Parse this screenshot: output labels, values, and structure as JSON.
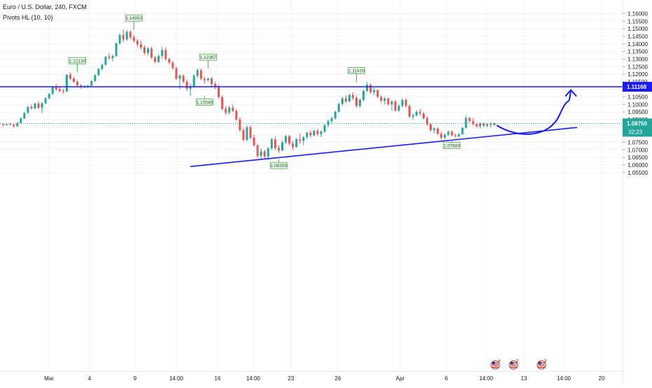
{
  "header": {
    "symbol_line": "Euro / U.S. Dollar, 240, FXCM",
    "indicator_line": "Pivots HL (10, 10)"
  },
  "colors": {
    "up": "#26a69a",
    "down": "#ef5350",
    "level_line": "#1a1aff",
    "last_price_bg": "#26a69a",
    "level_label_bg": "#1a1aff",
    "pivot_label_border": "#4caf50",
    "pivot_label_bg": "#eef7ee",
    "dotted_price_line": "#26a69a",
    "grid": "#f0f3fa",
    "axis_text": "#131722"
  },
  "price_axis": {
    "ticks": [
      "1.05500",
      "1.06000",
      "1.06500",
      "1.07000",
      "1.07500",
      "1.08000",
      "1.08500",
      "1.09000",
      "1.09500",
      "1.10000",
      "1.10500",
      "1.11000",
      "1.11500",
      "1.12000",
      "1.12500",
      "1.13000",
      "1.13500",
      "1.14000",
      "1.14500",
      "1.15000",
      "1.15500",
      "1.16000"
    ],
    "last_price_label": "1.08750",
    "countdown_label": "32:23",
    "level_label": "1.11168"
  },
  "time_axis": {
    "ticks": [
      "Mar",
      "4",
      "9",
      "14:00",
      "16",
      "14:00",
      "23",
      "26",
      "Apr",
      "6",
      "14:00",
      "13",
      "14:00",
      "20"
    ]
  },
  "event_icons": [
    "us-flag-icon",
    "us-flag-icon",
    "us-flag-icon"
  ],
  "event_counts": [
    "4",
    "2",
    "3"
  ],
  "chart_data": {
    "type": "candlestick",
    "title": "Euro / U.S. Dollar, 240, FXCM",
    "timeframe": "240",
    "ylim": [
      1.0525,
      1.1625
    ],
    "last_price": 1.0875,
    "horizontal_level": 1.11168,
    "pivot_labels": [
      {
        "text": "1.12130",
        "price": 1.1213,
        "type": "high"
      },
      {
        "text": "1.14950",
        "price": 1.1495,
        "type": "high"
      },
      {
        "text": "1.12367",
        "price": 1.12367,
        "type": "high"
      },
      {
        "text": "1.10549",
        "price": 1.10549,
        "type": "low"
      },
      {
        "text": "1.06359",
        "price": 1.06359,
        "type": "low"
      },
      {
        "text": "1.11476",
        "price": 1.11476,
        "type": "high"
      },
      {
        "text": "1.07683",
        "price": 1.07683,
        "type": "low"
      }
    ],
    "trendline": {
      "from": {
        "bar": 53,
        "price": 1.059
      },
      "to": {
        "bar": 138,
        "price": 1.0848
      }
    },
    "projection_arrow": {
      "from_price": 1.0862,
      "low_price": 1.084,
      "to_price": 1.1095
    },
    "candles": [
      [
        1.0868,
        1.0874,
        1.0856,
        1.0864
      ],
      [
        1.0864,
        1.0872,
        1.086,
        1.0869
      ],
      [
        1.0869,
        1.0879,
        1.0863,
        1.0866
      ],
      [
        1.0866,
        1.0872,
        1.0848,
        1.0856
      ],
      [
        1.0856,
        1.0882,
        1.0852,
        1.0878
      ],
      [
        1.0878,
        1.0914,
        1.0874,
        1.0908
      ],
      [
        1.0908,
        1.095,
        1.0902,
        1.0944
      ],
      [
        1.0944,
        1.099,
        1.0938,
        1.0984
      ],
      [
        1.0984,
        1.1,
        1.0966,
        1.0974
      ],
      [
        1.0974,
        1.1012,
        1.0968,
        1.1006
      ],
      [
        1.1006,
        1.102,
        1.097,
        1.0978
      ],
      [
        1.0978,
        1.1016,
        1.0944,
        1.1008
      ],
      [
        1.1008,
        1.1048,
        1.1002,
        1.104
      ],
      [
        1.104,
        1.1076,
        1.1034,
        1.107
      ],
      [
        1.107,
        1.112,
        1.1064,
        1.1114
      ],
      [
        1.1114,
        1.1134,
        1.109,
        1.11
      ],
      [
        1.11,
        1.1116,
        1.108,
        1.109
      ],
      [
        1.109,
        1.1104,
        1.1072,
        1.1086
      ],
      [
        1.1086,
        1.12,
        1.1082,
        1.1196
      ],
      [
        1.1196,
        1.1213,
        1.116,
        1.117
      ],
      [
        1.117,
        1.1182,
        1.1142,
        1.115
      ],
      [
        1.115,
        1.116,
        1.1118,
        1.1126
      ],
      [
        1.1126,
        1.1136,
        1.1104,
        1.1116
      ],
      [
        1.1116,
        1.1128,
        1.1108,
        1.112
      ],
      [
        1.112,
        1.113,
        1.111,
        1.1124
      ],
      [
        1.1124,
        1.116,
        1.1118,
        1.1154
      ],
      [
        1.1154,
        1.12,
        1.1148,
        1.1194
      ],
      [
        1.1194,
        1.124,
        1.1188,
        1.1234
      ],
      [
        1.1234,
        1.127,
        1.1226,
        1.1262
      ],
      [
        1.1262,
        1.132,
        1.1256,
        1.1314
      ],
      [
        1.1314,
        1.134,
        1.1296,
        1.1306
      ],
      [
        1.1306,
        1.133,
        1.1284,
        1.132
      ],
      [
        1.132,
        1.141,
        1.1314,
        1.1404
      ],
      [
        1.1404,
        1.147,
        1.1394,
        1.146
      ],
      [
        1.146,
        1.1495,
        1.141,
        1.143
      ],
      [
        1.143,
        1.149,
        1.142,
        1.148
      ],
      [
        1.148,
        1.149,
        1.143,
        1.1444
      ],
      [
        1.1444,
        1.146,
        1.141,
        1.142
      ],
      [
        1.142,
        1.143,
        1.138,
        1.1396
      ],
      [
        1.1396,
        1.142,
        1.136,
        1.1376
      ],
      [
        1.1376,
        1.1392,
        1.133,
        1.134
      ],
      [
        1.134,
        1.1378,
        1.1326,
        1.137
      ],
      [
        1.137,
        1.138,
        1.13,
        1.131
      ],
      [
        1.131,
        1.132,
        1.127,
        1.1282
      ],
      [
        1.1282,
        1.133,
        1.1274,
        1.132
      ],
      [
        1.132,
        1.138,
        1.13,
        1.136
      ],
      [
        1.136,
        1.1376,
        1.129,
        1.13
      ],
      [
        1.13,
        1.131,
        1.1264,
        1.1276
      ],
      [
        1.1276,
        1.129,
        1.123,
        1.124
      ],
      [
        1.124,
        1.125,
        1.116,
        1.117
      ],
      [
        1.117,
        1.12,
        1.11,
        1.119
      ],
      [
        1.119,
        1.12,
        1.114,
        1.115
      ],
      [
        1.115,
        1.1166,
        1.109,
        1.1104
      ],
      [
        1.1104,
        1.114,
        1.1055,
        1.112
      ],
      [
        1.112,
        1.12,
        1.111,
        1.119
      ],
      [
        1.119,
        1.1237,
        1.1176,
        1.1226
      ],
      [
        1.1226,
        1.1236,
        1.116,
        1.117
      ],
      [
        1.117,
        1.1182,
        1.1138,
        1.116
      ],
      [
        1.116,
        1.1176,
        1.115,
        1.1172
      ],
      [
        1.1172,
        1.118,
        1.112,
        1.1134
      ],
      [
        1.1134,
        1.115,
        1.11,
        1.1116
      ],
      [
        1.1116,
        1.113,
        1.104,
        1.1048
      ],
      [
        1.1048,
        1.106,
        1.096,
        1.097
      ],
      [
        1.097,
        1.0986,
        1.093,
        1.0946
      ],
      [
        1.0946,
        1.099,
        1.0932,
        1.098
      ],
      [
        1.098,
        1.1,
        1.095,
        1.0958
      ],
      [
        1.0958,
        1.097,
        1.089,
        1.09
      ],
      [
        1.09,
        1.0914,
        1.082,
        1.083
      ],
      [
        1.083,
        1.085,
        1.0754,
        1.0766
      ],
      [
        1.0766,
        1.086,
        1.0756,
        1.085
      ],
      [
        1.085,
        1.086,
        1.077,
        1.078
      ],
      [
        1.078,
        1.08,
        1.072,
        1.073
      ],
      [
        1.073,
        1.074,
        1.0646,
        1.066
      ],
      [
        1.066,
        1.071,
        1.064,
        1.069
      ],
      [
        1.069,
        1.07,
        1.064,
        1.0656
      ],
      [
        1.0656,
        1.072,
        1.0636,
        1.071
      ],
      [
        1.071,
        1.078,
        1.07,
        1.077
      ],
      [
        1.077,
        1.079,
        1.07,
        1.0712
      ],
      [
        1.0712,
        1.073,
        1.068,
        1.0696
      ],
      [
        1.0696,
        1.076,
        1.069,
        1.075
      ],
      [
        1.075,
        1.08,
        1.074,
        1.079
      ],
      [
        1.079,
        1.08,
        1.073,
        1.074
      ],
      [
        1.074,
        1.076,
        1.07,
        1.072
      ],
      [
        1.072,
        1.078,
        1.0712,
        1.077
      ],
      [
        1.077,
        1.081,
        1.074,
        1.076
      ],
      [
        1.076,
        1.079,
        1.073,
        1.0784
      ],
      [
        1.0784,
        1.082,
        1.077,
        1.0814
      ],
      [
        1.0814,
        1.083,
        1.078,
        1.0796
      ],
      [
        1.0796,
        1.0834,
        1.0788,
        1.0826
      ],
      [
        1.0826,
        1.084,
        1.079,
        1.0804
      ],
      [
        1.0804,
        1.083,
        1.0784,
        1.082
      ],
      [
        1.082,
        1.087,
        1.0812,
        1.0864
      ],
      [
        1.0864,
        1.09,
        1.085,
        1.089
      ],
      [
        1.089,
        1.092,
        1.087,
        1.0908
      ],
      [
        1.0908,
        1.096,
        1.09,
        1.0952
      ],
      [
        1.0952,
        1.101,
        1.0946,
        1.1004
      ],
      [
        1.1004,
        1.105,
        1.099,
        1.104
      ],
      [
        1.104,
        1.106,
        1.101,
        1.102
      ],
      [
        1.102,
        1.107,
        1.1014,
        1.1062
      ],
      [
        1.1062,
        1.108,
        1.103,
        1.1044
      ],
      [
        1.1044,
        1.106,
        1.098,
        1.099
      ],
      [
        1.099,
        1.104,
        1.098,
        1.103
      ],
      [
        1.103,
        1.11,
        1.102,
        1.109
      ],
      [
        1.109,
        1.1148,
        1.108,
        1.113
      ],
      [
        1.113,
        1.114,
        1.107,
        1.108
      ],
      [
        1.108,
        1.111,
        1.106,
        1.1094
      ],
      [
        1.1094,
        1.11,
        1.104,
        1.105
      ],
      [
        1.105,
        1.106,
        1.101,
        1.1024
      ],
      [
        1.1024,
        1.105,
        1.1,
        1.104
      ],
      [
        1.104,
        1.1046,
        1.099,
        1.1
      ],
      [
        1.1,
        1.103,
        1.096,
        1.102
      ],
      [
        1.102,
        1.103,
        1.095,
        1.096
      ],
      [
        1.096,
        1.1,
        1.095,
        1.099
      ],
      [
        1.099,
        1.104,
        1.098,
        1.103
      ],
      [
        1.103,
        1.104,
        1.098,
        1.099
      ],
      [
        1.099,
        1.1,
        1.091,
        1.092
      ],
      [
        1.092,
        1.094,
        1.09,
        1.0928
      ],
      [
        1.0928,
        1.096,
        1.092,
        1.095
      ],
      [
        1.095,
        1.097,
        1.093,
        1.094
      ],
      [
        1.094,
        1.095,
        1.09,
        1.091
      ],
      [
        1.091,
        1.092,
        1.086,
        1.087
      ],
      [
        1.087,
        1.088,
        1.082,
        1.083
      ],
      [
        1.083,
        1.085,
        1.081,
        1.084
      ],
      [
        1.084,
        1.085,
        1.08,
        1.0806
      ],
      [
        1.0806,
        1.082,
        1.0768,
        1.078
      ],
      [
        1.078,
        1.081,
        1.077,
        1.08
      ],
      [
        1.08,
        1.083,
        1.079,
        1.082
      ],
      [
        1.082,
        1.083,
        1.079,
        1.0796
      ],
      [
        1.0796,
        1.081,
        1.078,
        1.079
      ],
      [
        1.079,
        1.081,
        1.078,
        1.0804
      ],
      [
        1.0804,
        1.085,
        1.08,
        1.0846
      ],
      [
        1.0846,
        1.093,
        1.084,
        1.091
      ],
      [
        1.091,
        1.092,
        1.088,
        1.089
      ],
      [
        1.089,
        1.091,
        1.086,
        1.087
      ],
      [
        1.087,
        1.088,
        1.0846,
        1.0856
      ],
      [
        1.0856,
        1.088,
        1.084,
        1.0874
      ],
      [
        1.0874,
        1.088,
        1.085,
        1.086
      ],
      [
        1.086,
        1.088,
        1.085,
        1.087
      ],
      [
        1.087,
        1.0882,
        1.0846,
        1.0864
      ],
      [
        1.0864,
        1.088,
        1.086,
        1.0875
      ]
    ]
  }
}
